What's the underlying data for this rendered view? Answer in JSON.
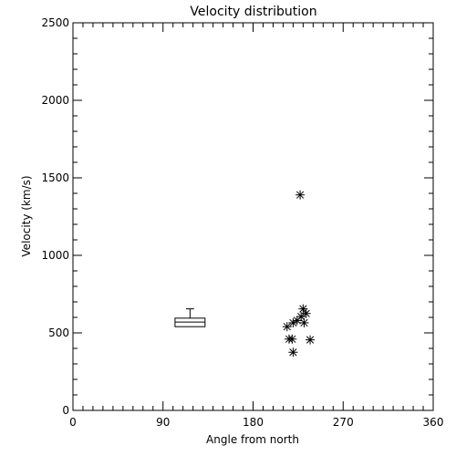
{
  "chart_data": {
    "type": "scatter",
    "title": "Velocity distribution",
    "xlabel": "Angle from north",
    "ylabel": "Velocity (km/s)",
    "xlim": [
      0,
      360
    ],
    "ylim": [
      0,
      2500
    ],
    "x_ticks": [
      0,
      90,
      180,
      270,
      360
    ],
    "y_ticks": [
      0,
      500,
      1000,
      1500,
      2000,
      2500
    ],
    "x_minor_step": 10,
    "y_minor_step": 100,
    "grid": false,
    "legend": "none",
    "marker": "asterisk",
    "points": [
      {
        "x": 227,
        "y": 1390
      },
      {
        "x": 230,
        "y": 655
      },
      {
        "x": 233,
        "y": 625
      },
      {
        "x": 228,
        "y": 605
      },
      {
        "x": 224,
        "y": 580
      },
      {
        "x": 220,
        "y": 565
      },
      {
        "x": 231,
        "y": 565
      },
      {
        "x": 214,
        "y": 540
      },
      {
        "x": 216,
        "y": 460
      },
      {
        "x": 219,
        "y": 460
      },
      {
        "x": 237,
        "y": 455
      },
      {
        "x": 220,
        "y": 375
      }
    ],
    "boxplot": {
      "x": 117,
      "half_width": 15,
      "whisker_low": 540,
      "q1": 540,
      "median": 570,
      "q3": 595,
      "whisker_high": 655,
      "cap_half_width": 4
    }
  }
}
